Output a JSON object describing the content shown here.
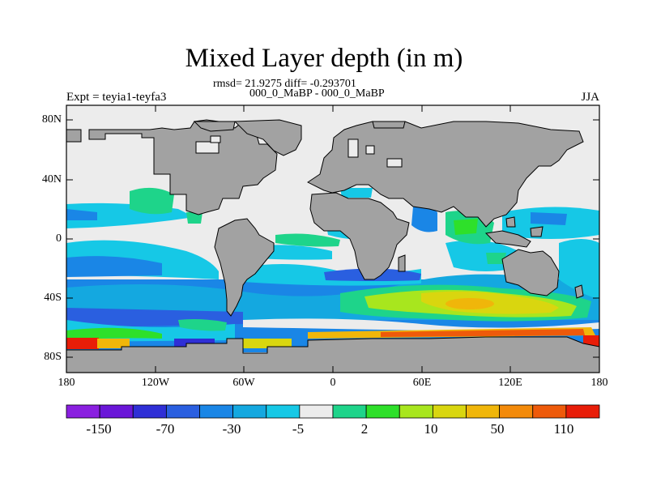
{
  "title": "Mixed Layer depth (in m)",
  "stats": {
    "rmsd_line": "rmsd= 21.9275 diff= -0.293701",
    "compare_line": "000_0_MaBP - 000_0_MaBP"
  },
  "left_label": "Expt = teyia1-teyfa3",
  "right_label": "JJA",
  "y_ticks": [
    "80N",
    "40N",
    "0",
    "40S",
    "80S"
  ],
  "x_ticks": [
    "180",
    "120W",
    "60W",
    "0",
    "60E",
    "120E",
    "180"
  ],
  "colorbar": {
    "colors": [
      "#8a1fe0",
      "#6a16d8",
      "#2f2fd6",
      "#2a5fe0",
      "#1a86e6",
      "#14a8e0",
      "#16c8e6",
      "#ececec",
      "#1ed48a",
      "#2ee02a",
      "#a8e61e",
      "#d9d60f",
      "#f0b60a",
      "#f38a0a",
      "#ee5a0a",
      "#e81d08"
    ],
    "labels": [
      "-150",
      "-70",
      "-30",
      "-5",
      "2",
      "10",
      "50",
      "110"
    ]
  },
  "colors": {
    "land": "#a2a2a2",
    "ocean_neutral": "#ececec"
  }
}
